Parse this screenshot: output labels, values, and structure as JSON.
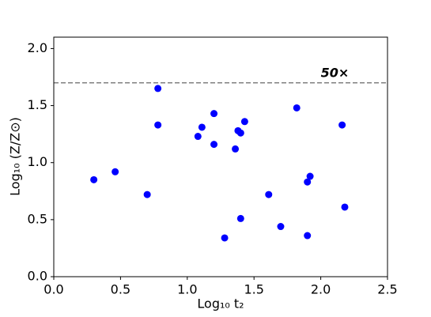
{
  "chart_data": {
    "type": "scatter",
    "xlabel": "Log₁₀ t₂",
    "ylabel": "Log₁₀ (Z/Z⊙)",
    "color": "#0000ff",
    "x": [
      0.3,
      0.46,
      0.7,
      0.78,
      0.78,
      1.08,
      1.11,
      1.2,
      1.2,
      1.28,
      1.38,
      1.4,
      1.4,
      1.36,
      1.43,
      1.61,
      1.7,
      1.82,
      1.9,
      1.92,
      1.9,
      2.16,
      2.18
    ],
    "values": [
      0.85,
      0.92,
      0.72,
      1.65,
      1.33,
      1.23,
      1.31,
      1.43,
      1.16,
      0.34,
      1.28,
      1.26,
      0.51,
      1.12,
      1.36,
      0.72,
      0.44,
      1.48,
      0.83,
      0.88,
      0.36,
      1.33,
      0.61
    ],
    "xlim": [
      0,
      2.5
    ],
    "ylim": [
      0,
      2.1
    ],
    "xticks": [
      {
        "value": 0,
        "label": "0.0"
      },
      0.5,
      {
        "value": 1,
        "label": "1.0"
      },
      1.5,
      {
        "value": 2,
        "label": "2.0"
      },
      2.5
    ],
    "yticks": [
      {
        "value": 0,
        "label": "0.0"
      },
      0.5,
      {
        "value": 1,
        "label": "1.0"
      },
      1.5,
      {
        "value": 2,
        "label": "2.0"
      }
    ],
    "reference_line": {
      "y": 1.7,
      "color": "#808080"
    },
    "annotation": {
      "text": "50×",
      "x": 2.0,
      "y": 1.78,
      "color": "#808080"
    }
  }
}
